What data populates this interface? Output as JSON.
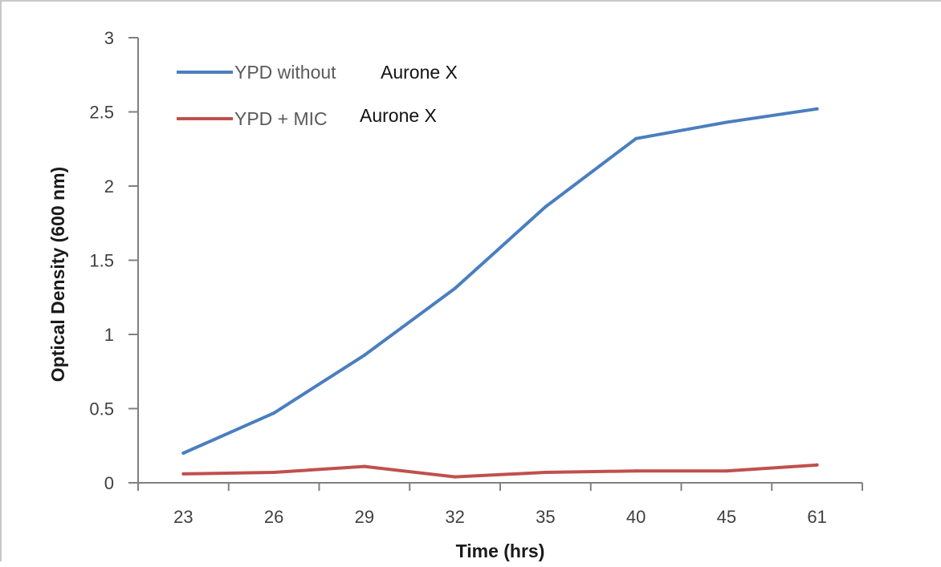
{
  "chart_data": {
    "type": "line",
    "title": "",
    "xlabel": "Time (hrs)",
    "ylabel": "Optical Density (600 nm)",
    "categories": [
      "23",
      "26",
      "29",
      "32",
      "35",
      "40",
      "45",
      "61"
    ],
    "ylim": [
      0,
      3
    ],
    "yticks": [
      "0",
      "0.5",
      "1",
      "1.5",
      "2",
      "2.5",
      "3"
    ],
    "grid": false,
    "legend_position": "top-left",
    "series": [
      {
        "name": "YPD without",
        "name_suffix": "Aurone X",
        "color": "#4a7ebf",
        "values": [
          0.2,
          0.47,
          0.86,
          1.31,
          1.86,
          2.32,
          2.43,
          2.52
        ]
      },
      {
        "name": "YPD + MIC",
        "name_suffix": "Aurone X",
        "color": "#c0504d",
        "values": [
          0.06,
          0.07,
          0.11,
          0.04,
          0.07,
          0.08,
          0.08,
          0.12
        ]
      }
    ]
  }
}
